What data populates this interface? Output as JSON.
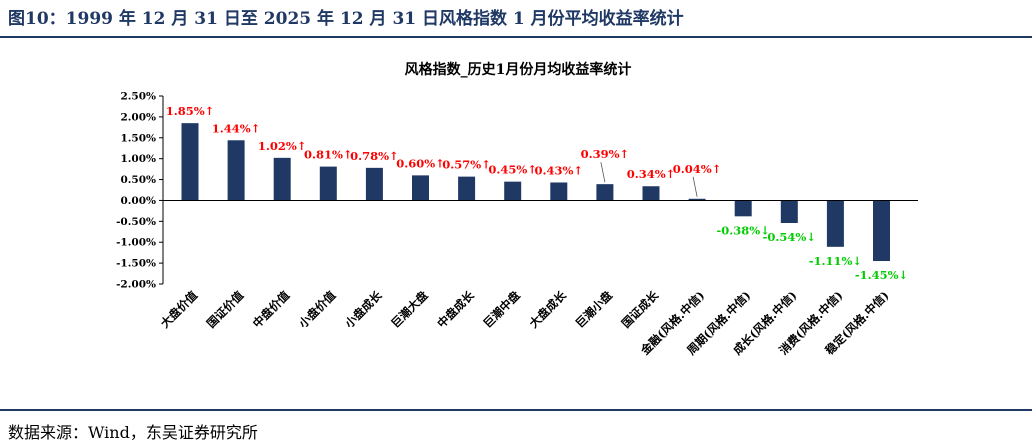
{
  "figure": {
    "title": "图10：1999 年 12 月 31 日至 2025 年 12 月 31 日风格指数 1 月份平均收益率统计",
    "source": "数据来源：Wind，东吴证券研究所"
  },
  "chart_data": {
    "type": "bar",
    "title": "风格指数_历史1月份月均收益率统计",
    "xlabel": "",
    "ylabel": "",
    "ylim": [
      -2.0,
      2.5
    ],
    "y_ticks": [
      "2.50%",
      "2.00%",
      "1.50%",
      "1.00%",
      "0.50%",
      "0.00%",
      "-0.50%",
      "-1.00%",
      "-1.50%",
      "-2.00%"
    ],
    "categories": [
      "大盘价值",
      "国证价值",
      "中盘价值",
      "小盘价值",
      "小盘成长",
      "巨潮大盘",
      "中盘成长",
      "巨潮中盘",
      "大盘成长",
      "巨潮小盘",
      "国证成长",
      "金融(风格.中信)",
      "周期(风格.中信)",
      "成长(风格.中信)",
      "消费(风格.中信)",
      "稳定(风格.中信)"
    ],
    "values": [
      1.85,
      1.44,
      1.02,
      0.81,
      0.78,
      0.6,
      0.57,
      0.45,
      0.43,
      0.39,
      0.34,
      0.04,
      -0.38,
      -0.54,
      -1.11,
      -1.45
    ],
    "data_labels": [
      "1.85%↑",
      "1.44%↑",
      "1.02%↑",
      "0.81%↑",
      "0.78%↑",
      "0.60%↑",
      "0.57%↑",
      "0.45%↑",
      "0.43%↑",
      "0.39%↑",
      "0.34%↑",
      "0.04%↑",
      "-0.38%↓",
      "-0.54%↓",
      "-1.11%↓",
      "-1.45%↓"
    ],
    "grid": false,
    "legend": "none",
    "colors": {
      "bar": "#1f3864",
      "positive_label": "#ff0000",
      "negative_label": "#00cc00",
      "axis": "#000000"
    }
  }
}
